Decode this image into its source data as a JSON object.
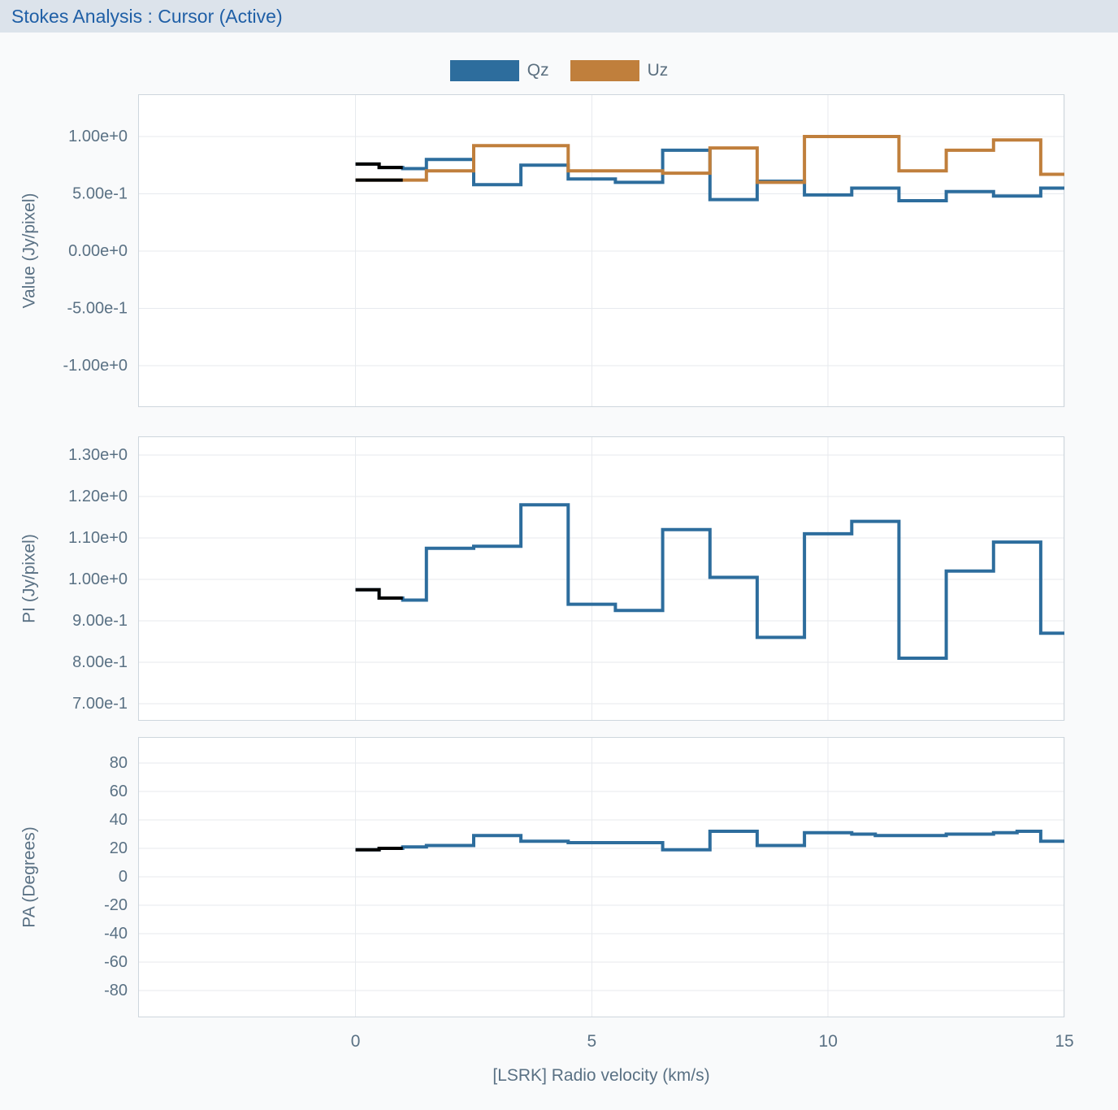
{
  "header": {
    "title": "Stokes Analysis : Cursor (Active)"
  },
  "legend": {
    "items": [
      {
        "label": "Qz",
        "color": "#2d6d9d"
      },
      {
        "label": "Uz",
        "color": "#c07f3c"
      }
    ]
  },
  "x_axis": {
    "title": "[LSRK] Radio velocity (km/s)",
    "range": [
      -4.6,
      15
    ],
    "ticks": [
      {
        "v": 0,
        "label": "0"
      },
      {
        "v": 5,
        "label": "5"
      },
      {
        "v": 10,
        "label": "10"
      },
      {
        "v": 15,
        "label": "15"
      }
    ]
  },
  "highlight": {
    "x_start": 0,
    "x_end": 1,
    "color": "#000000"
  },
  "chart_data": [
    {
      "id": "value",
      "type": "line",
      "mode": "step-after",
      "ylabel": "Value (Jy/pixel)",
      "y_range": [
        -1.362,
        1.369
      ],
      "yticks": [
        {
          "v": 1.0,
          "label": "1.00e+0"
        },
        {
          "v": 0.5,
          "label": "5.00e-1"
        },
        {
          "v": 0.0,
          "label": "0.00e+0"
        },
        {
          "v": -0.5,
          "label": "-5.00e-1"
        },
        {
          "v": -1.0,
          "label": "-1.00e+0"
        }
      ],
      "x_start": 0,
      "x_step": 0.5,
      "series": [
        {
          "name": "Qz",
          "color": "#2d6d9d",
          "values": [
            0.76,
            0.73,
            0.72,
            0.8,
            0.8,
            0.58,
            0.58,
            0.75,
            0.75,
            0.63,
            0.63,
            0.6,
            0.6,
            0.88,
            0.88,
            0.45,
            0.45,
            0.61,
            0.61,
            0.49,
            0.49,
            0.55,
            0.55,
            0.44,
            0.44,
            0.52,
            0.52,
            0.48,
            0.48,
            0.55,
            0.55
          ]
        },
        {
          "name": "Uz",
          "color": "#c07f3c",
          "values": [
            0.62,
            0.62,
            0.62,
            0.7,
            0.7,
            0.92,
            0.92,
            0.92,
            0.92,
            0.7,
            0.7,
            0.7,
            0.7,
            0.68,
            0.68,
            0.9,
            0.9,
            0.6,
            0.6,
            1.0,
            1.0,
            1.0,
            1.0,
            0.7,
            0.7,
            0.88,
            0.88,
            0.97,
            0.97,
            0.67,
            0.67
          ]
        }
      ]
    },
    {
      "id": "pi",
      "type": "line",
      "mode": "step-after",
      "ylabel": "PI (Jy/pixel)",
      "y_range": [
        0.659,
        1.345
      ],
      "yticks": [
        {
          "v": 1.3,
          "label": "1.30e+0"
        },
        {
          "v": 1.2,
          "label": "1.20e+0"
        },
        {
          "v": 1.1,
          "label": "1.10e+0"
        },
        {
          "v": 1.0,
          "label": "1.00e+0"
        },
        {
          "v": 0.9,
          "label": "9.00e-1"
        },
        {
          "v": 0.8,
          "label": "8.00e-1"
        },
        {
          "v": 0.7,
          "label": "7.00e-1"
        }
      ],
      "x_start": 0,
      "x_step": 0.5,
      "series": [
        {
          "name": "PI",
          "color": "#2d6d9d",
          "values": [
            0.975,
            0.955,
            0.95,
            1.075,
            1.075,
            1.08,
            1.08,
            1.18,
            1.18,
            0.94,
            0.94,
            0.925,
            0.925,
            1.12,
            1.12,
            1.005,
            1.005,
            0.86,
            0.86,
            1.11,
            1.11,
            1.14,
            1.14,
            0.81,
            0.81,
            1.02,
            1.02,
            1.09,
            1.09,
            0.87,
            0.87
          ]
        }
      ]
    },
    {
      "id": "pa",
      "type": "line",
      "mode": "step-after",
      "ylabel": "PA (Degrees)",
      "y_range": [
        -98.9,
        98.3
      ],
      "yticks": [
        {
          "v": 80,
          "label": "80"
        },
        {
          "v": 60,
          "label": "60"
        },
        {
          "v": 40,
          "label": "40"
        },
        {
          "v": 20,
          "label": "20"
        },
        {
          "v": 0,
          "label": "0"
        },
        {
          "v": -20,
          "label": "-20"
        },
        {
          "v": -40,
          "label": "-40"
        },
        {
          "v": -60,
          "label": "-60"
        },
        {
          "v": -80,
          "label": "-80"
        }
      ],
      "x_start": 0,
      "x_step": 0.5,
      "series": [
        {
          "name": "PA",
          "color": "#2d6d9d",
          "values": [
            19,
            20,
            21,
            22,
            22,
            29,
            29,
            25,
            25,
            24,
            24,
            24,
            24,
            19,
            19,
            32,
            32,
            22,
            22,
            31,
            31,
            30,
            29,
            29,
            29,
            30,
            30,
            31,
            32,
            25,
            25
          ]
        }
      ]
    }
  ]
}
